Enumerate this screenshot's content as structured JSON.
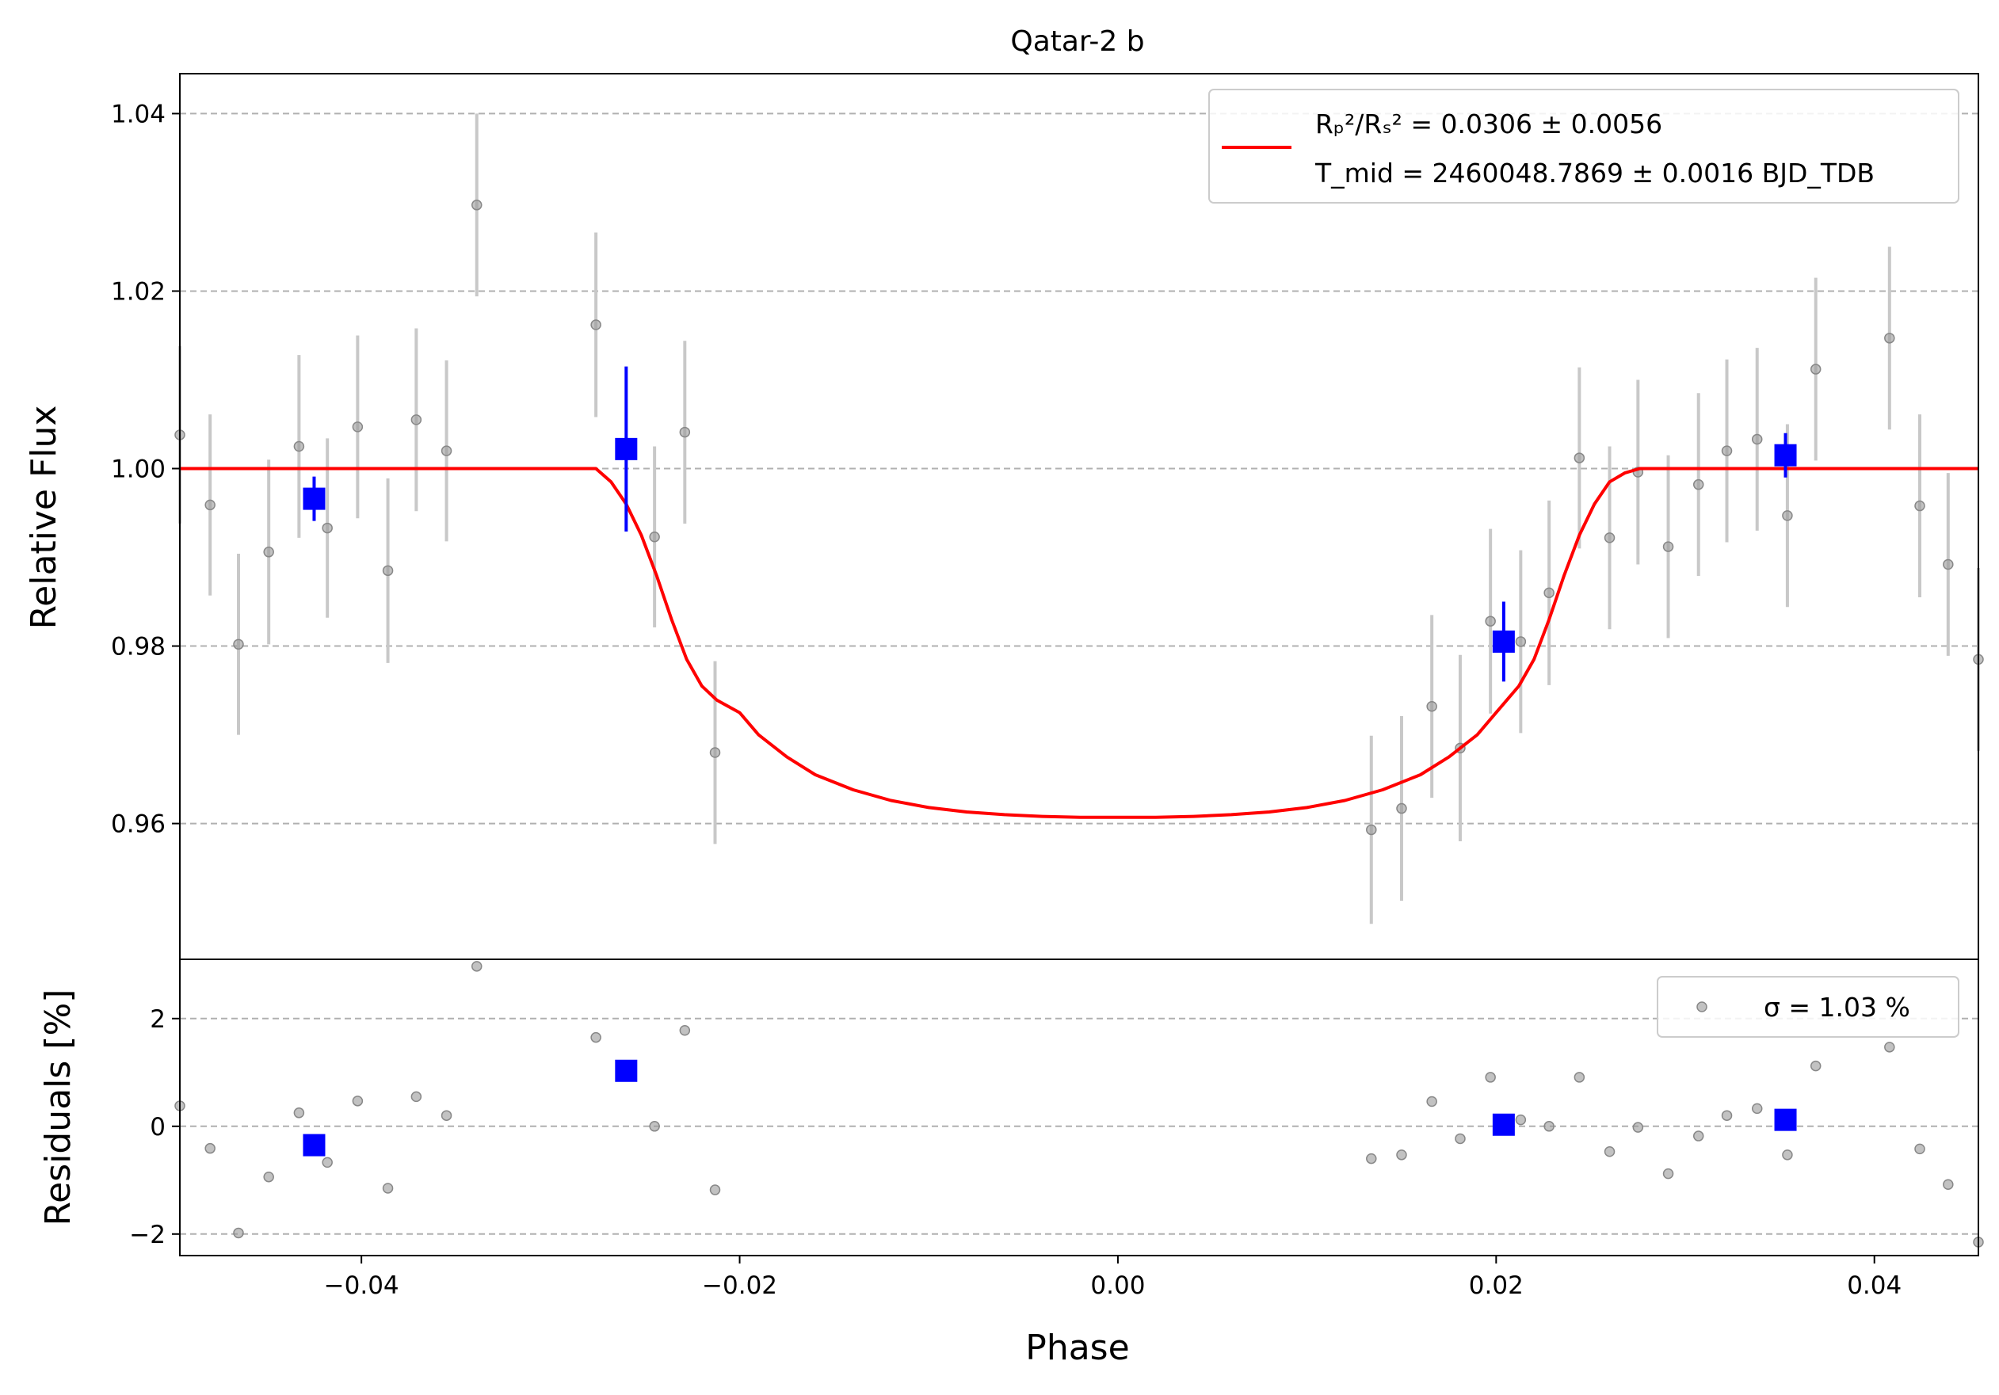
{
  "chart_data": {
    "type": "scatter",
    "title": "Qatar-2 b",
    "xlabel": "Phase",
    "xlim": [
      -0.0496,
      0.0455
    ],
    "xticks": [
      {
        "value": -0.04,
        "label": "−0.04"
      },
      {
        "value": -0.02,
        "label": "−0.02"
      },
      {
        "value": 0.0,
        "label": "0.00"
      },
      {
        "value": 0.02,
        "label": "0.02"
      },
      {
        "value": 0.04,
        "label": "0.04"
      }
    ],
    "top_panel": {
      "ylabel": "Relative Flux",
      "ylim": [
        0.9447,
        1.0445
      ],
      "yticks": [
        {
          "value": 0.96,
          "label": "0.96"
        },
        {
          "value": 0.98,
          "label": "0.98"
        },
        {
          "value": 1.0,
          "label": "1.00"
        },
        {
          "value": 1.02,
          "label": "1.02"
        },
        {
          "value": 1.04,
          "label": "1.04"
        }
      ],
      "grid": "horizontal-dashed",
      "legend": {
        "placement": "top-right",
        "line1": "Rₚ²/Rₛ² = 0.0306 ± 0.0056",
        "line2": "T_mid = 2460048.7869 ± 0.0016 BJD_TDB"
      },
      "series": [
        {
          "role": "data",
          "color": "#999999",
          "points": [
            {
              "x": -0.0496,
              "y": 1.0038,
              "err": 0.01
            },
            {
              "x": -0.048,
              "y": 0.9959,
              "err": 0.0102
            },
            {
              "x": -0.0465,
              "y": 0.9802,
              "err": 0.0102
            },
            {
              "x": -0.0449,
              "y": 0.9906,
              "err": 0.0104
            },
            {
              "x": -0.0433,
              "y": 1.0025,
              "err": 0.0103
            },
            {
              "x": -0.0418,
              "y": 0.9933,
              "err": 0.0101
            },
            {
              "x": -0.0402,
              "y": 1.0047,
              "err": 0.0103
            },
            {
              "x": -0.0386,
              "y": 0.9885,
              "err": 0.0104
            },
            {
              "x": -0.0371,
              "y": 1.0055,
              "err": 0.0103
            },
            {
              "x": -0.0355,
              "y": 1.002,
              "err": 0.0102
            },
            {
              "x": -0.0339,
              "y": 1.0297,
              "err": 0.0103
            },
            {
              "x": -0.0276,
              "y": 1.0162,
              "err": 0.0104
            },
            {
              "x": -0.0245,
              "y": 0.9923,
              "err": 0.0102
            },
            {
              "x": -0.0229,
              "y": 1.0041,
              "err": 0.0103
            },
            {
              "x": -0.0213,
              "y": 0.968,
              "err": 0.0103
            },
            {
              "x": 0.0134,
              "y": 0.9593,
              "err": 0.0106
            },
            {
              "x": 0.015,
              "y": 0.9617,
              "err": 0.0104
            },
            {
              "x": 0.0166,
              "y": 0.9732,
              "err": 0.0103
            },
            {
              "x": 0.0181,
              "y": 0.9685,
              "err": 0.0105
            },
            {
              "x": 0.0197,
              "y": 0.9828,
              "err": 0.0104
            },
            {
              "x": 0.0213,
              "y": 0.9805,
              "err": 0.0103
            },
            {
              "x": 0.0228,
              "y": 0.986,
              "err": 0.0104
            },
            {
              "x": 0.0244,
              "y": 1.0012,
              "err": 0.0102
            },
            {
              "x": 0.026,
              "y": 0.9922,
              "err": 0.0103
            },
            {
              "x": 0.0275,
              "y": 0.9996,
              "err": 0.0104
            },
            {
              "x": 0.0291,
              "y": 0.9912,
              "err": 0.0103
            },
            {
              "x": 0.0307,
              "y": 0.9982,
              "err": 0.0103
            },
            {
              "x": 0.0322,
              "y": 1.002,
              "err": 0.0103
            },
            {
              "x": 0.0338,
              "y": 1.0033,
              "err": 0.0103
            },
            {
              "x": 0.0354,
              "y": 0.9947,
              "err": 0.0103
            },
            {
              "x": 0.0369,
              "y": 1.0112,
              "err": 0.0103
            },
            {
              "x": 0.0408,
              "y": 1.0147,
              "err": 0.0103
            },
            {
              "x": 0.0424,
              "y": 0.9958,
              "err": 0.0103
            },
            {
              "x": 0.0439,
              "y": 0.9892,
              "err": 0.0103
            },
            {
              "x": 0.0455,
              "y": 0.9785,
              "err": 0.0103
            }
          ]
        },
        {
          "role": "binned",
          "color": "#0000ff",
          "points": [
            {
              "x": -0.0425,
              "y": 0.9966,
              "err": 0.0025
            },
            {
              "x": -0.026,
              "y": 1.0022,
              "err": 0.0093
            },
            {
              "x": 0.0204,
              "y": 0.9805,
              "err": 0.0045
            },
            {
              "x": 0.0353,
              "y": 1.0015,
              "err": 0.0025
            }
          ]
        },
        {
          "role": "model",
          "name": "model",
          "color": "#ff0000",
          "x": [
            -0.0496,
            -0.0276,
            -0.0268,
            -0.026,
            -0.0252,
            -0.0244,
            -0.0236,
            -0.0228,
            -0.022,
            -0.0212,
            -0.02,
            -0.019,
            -0.0175,
            -0.016,
            -0.014,
            -0.012,
            -0.01,
            -0.008,
            -0.006,
            -0.004,
            -0.002,
            0.0,
            0.002,
            0.004,
            0.006,
            0.008,
            0.01,
            0.012,
            0.014,
            0.016,
            0.0175,
            0.019,
            0.02,
            0.0212,
            0.022,
            0.0228,
            0.0236,
            0.0244,
            0.0252,
            0.026,
            0.0268,
            0.0276,
            0.0455
          ],
          "y": [
            1.0,
            1.0,
            0.9985,
            0.996,
            0.9925,
            0.988,
            0.983,
            0.9785,
            0.9755,
            0.9739,
            0.9725,
            0.97,
            0.9675,
            0.9655,
            0.9638,
            0.9626,
            0.9618,
            0.9613,
            0.961,
            0.9608,
            0.9607,
            0.9607,
            0.9607,
            0.9608,
            0.961,
            0.9613,
            0.9618,
            0.9626,
            0.9638,
            0.9655,
            0.9675,
            0.97,
            0.9725,
            0.9755,
            0.9785,
            0.983,
            0.988,
            0.9925,
            0.996,
            0.9985,
            0.9995,
            1.0,
            1.0
          ]
        }
      ]
    },
    "bottom_panel": {
      "ylabel": "Residuals [%]",
      "ylim": [
        -2.4,
        3.1
      ],
      "yticks": [
        {
          "value": -2,
          "label": "−2"
        },
        {
          "value": 0,
          "label": "0"
        },
        {
          "value": 2,
          "label": "2"
        }
      ],
      "grid": "horizontal-dashed",
      "legend": {
        "placement": "top-right",
        "label": "σ = 1.03 %"
      },
      "series": [
        {
          "role": "residuals",
          "color": "#999999",
          "points": [
            {
              "x": -0.0496,
              "y": 0.38
            },
            {
              "x": -0.048,
              "y": -0.41
            },
            {
              "x": -0.0465,
              "y": -1.98
            },
            {
              "x": -0.0449,
              "y": -0.94
            },
            {
              "x": -0.0433,
              "y": 0.25
            },
            {
              "x": -0.0418,
              "y": -0.67
            },
            {
              "x": -0.0402,
              "y": 0.47
            },
            {
              "x": -0.0386,
              "y": -1.15
            },
            {
              "x": -0.0371,
              "y": 0.55
            },
            {
              "x": -0.0355,
              "y": 0.2
            },
            {
              "x": -0.0339,
              "y": 2.97
            },
            {
              "x": -0.0276,
              "y": 1.65
            },
            {
              "x": -0.0245,
              "y": 0.0
            },
            {
              "x": -0.0229,
              "y": 1.78
            },
            {
              "x": -0.0213,
              "y": -1.18
            },
            {
              "x": 0.0134,
              "y": -0.6
            },
            {
              "x": 0.015,
              "y": -0.53
            },
            {
              "x": 0.0166,
              "y": 0.46
            },
            {
              "x": 0.0181,
              "y": -0.23
            },
            {
              "x": 0.0197,
              "y": 0.91
            },
            {
              "x": 0.0213,
              "y": 0.12
            },
            {
              "x": 0.0228,
              "y": 0.0
            },
            {
              "x": 0.0244,
              "y": 0.91
            },
            {
              "x": 0.026,
              "y": -0.47
            },
            {
              "x": 0.0275,
              "y": -0.02
            },
            {
              "x": 0.0291,
              "y": -0.88
            },
            {
              "x": 0.0307,
              "y": -0.18
            },
            {
              "x": 0.0322,
              "y": 0.2
            },
            {
              "x": 0.0338,
              "y": 0.33
            },
            {
              "x": 0.0354,
              "y": -0.53
            },
            {
              "x": 0.0369,
              "y": 1.12
            },
            {
              "x": 0.0408,
              "y": 1.47
            },
            {
              "x": 0.0424,
              "y": -0.42
            },
            {
              "x": 0.0439,
              "y": -1.08
            },
            {
              "x": 0.0455,
              "y": -2.15
            }
          ]
        },
        {
          "role": "binned-residuals",
          "color": "#0000ff",
          "points": [
            {
              "x": -0.0425,
              "y": -0.35
            },
            {
              "x": -0.026,
              "y": 1.03
            },
            {
              "x": 0.0204,
              "y": 0.03
            },
            {
              "x": 0.0353,
              "y": 0.12
            }
          ]
        }
      ]
    }
  }
}
